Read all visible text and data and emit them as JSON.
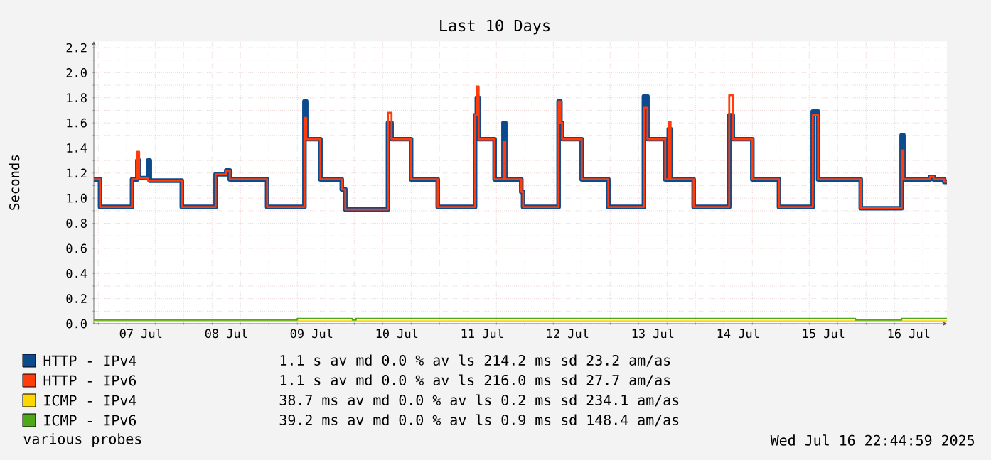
{
  "chart_data": {
    "type": "step",
    "title": "Last 10 Days",
    "ylabel": "Seconds",
    "x": [
      "2025-07-06T22:45",
      "2025-07-07T00:30",
      "2025-07-07T09:30",
      "2025-07-07T11:00",
      "2025-07-07T11:30",
      "2025-07-07T14:00",
      "2025-07-07T14:30",
      "2025-07-07T23:30",
      "2025-07-08T09:00",
      "2025-07-08T12:00",
      "2025-07-08T13:00",
      "2025-07-08T23:30",
      "2025-07-09T10:00",
      "2025-07-09T10:30",
      "2025-07-09T14:30",
      "2025-07-09T20:30",
      "2025-07-09T21:30",
      "2025-07-10T09:30",
      "2025-07-10T10:30",
      "2025-07-10T16:00",
      "2025-07-10T23:30",
      "2025-07-11T10:00",
      "2025-07-11T10:30",
      "2025-07-11T11:00",
      "2025-07-11T15:30",
      "2025-07-11T18:00",
      "2025-07-11T18:30",
      "2025-07-11T23:00",
      "2025-07-11T23:30",
      "2025-07-12T09:30",
      "2025-07-12T10:00",
      "2025-07-12T10:30",
      "2025-07-12T16:00",
      "2025-07-12T23:30",
      "2025-07-13T09:30",
      "2025-07-13T10:30",
      "2025-07-13T15:30",
      "2025-07-13T16:30",
      "2025-07-13T17:00",
      "2025-07-13T23:30",
      "2025-07-14T09:30",
      "2025-07-14T10:30",
      "2025-07-14T16:00",
      "2025-07-14T23:30",
      "2025-07-15T09:00",
      "2025-07-15T10:30",
      "2025-07-15T22:30",
      "2025-07-16T10:00",
      "2025-07-16T10:30",
      "2025-07-16T18:00",
      "2025-07-16T19:00",
      "2025-07-16T22:00",
      "2025-07-16T22:45"
    ],
    "series": [
      {
        "name": "HTTP - IPv4",
        "color": "#0b4a8c",
        "values": [
          1.15,
          0.93,
          1.15,
          1.3,
          1.16,
          1.3,
          1.14,
          0.93,
          1.19,
          1.22,
          1.15,
          0.93,
          1.77,
          1.47,
          1.15,
          1.07,
          0.91,
          1.6,
          1.47,
          1.15,
          0.93,
          1.66,
          1.8,
          1.47,
          1.15,
          1.6,
          1.15,
          1.05,
          0.93,
          1.77,
          1.6,
          1.47,
          1.15,
          0.93,
          1.81,
          1.47,
          1.15,
          1.55,
          1.15,
          0.93,
          1.66,
          1.47,
          1.15,
          0.93,
          1.69,
          1.15,
          0.92,
          1.5,
          1.15,
          1.17,
          1.15,
          1.13,
          1.13
        ]
      },
      {
        "name": "HTTP - IPv6",
        "color": "#ff3c0a",
        "values": [
          1.15,
          0.93,
          1.15,
          1.37,
          1.16,
          1.14,
          1.14,
          0.93,
          1.19,
          1.22,
          1.15,
          0.93,
          1.64,
          1.47,
          1.15,
          1.07,
          0.91,
          1.68,
          1.47,
          1.15,
          0.93,
          1.66,
          1.89,
          1.47,
          1.15,
          1.45,
          1.15,
          1.05,
          0.93,
          1.77,
          1.6,
          1.47,
          1.15,
          0.93,
          1.72,
          1.47,
          1.15,
          1.61,
          1.15,
          0.93,
          1.82,
          1.47,
          1.15,
          0.93,
          1.66,
          1.15,
          0.92,
          1.38,
          1.15,
          1.17,
          1.15,
          1.13,
          1.13
        ]
      },
      {
        "name": "ICMP - IPv4",
        "color": "#ffd700",
        "x": [
          "2025-07-06T22:45",
          "2025-07-16T22:45"
        ],
        "values": [
          0.02,
          0.02
        ]
      },
      {
        "name": "ICMP - IPv6",
        "color": "#4ea81a",
        "x": [
          "2025-07-06T22:45",
          "2025-07-09T08:00",
          "2025-07-09T23:30",
          "2025-07-10T00:30",
          "2025-07-15T21:00",
          "2025-07-16T10:00",
          "2025-07-16T22:45"
        ],
        "values": [
          0.03,
          0.04,
          0.03,
          0.04,
          0.03,
          0.04,
          0.04
        ]
      }
    ],
    "xlim": [
      "2025-07-06T22:45",
      "2025-07-16T22:45"
    ],
    "xticks": [
      {
        "value": "2025-07-07T00:00",
        "label": null
      },
      {
        "value": "2025-07-07T08:00",
        "label": null
      },
      {
        "value": "2025-07-07T16:00",
        "label": null
      },
      {
        "value": "2025-07-08T00:00",
        "label": null
      },
      {
        "value": "2025-07-08T08:00",
        "label": null
      },
      {
        "value": "2025-07-08T16:00",
        "label": null
      },
      {
        "value": "2025-07-09T00:00",
        "label": null
      },
      {
        "value": "2025-07-09T08:00",
        "label": null
      },
      {
        "value": "2025-07-09T16:00",
        "label": null
      },
      {
        "value": "2025-07-10T00:00",
        "label": null
      },
      {
        "value": "2025-07-10T08:00",
        "label": null
      },
      {
        "value": "2025-07-10T16:00",
        "label": null
      },
      {
        "value": "2025-07-11T00:00",
        "label": null
      },
      {
        "value": "2025-07-11T08:00",
        "label": null
      },
      {
        "value": "2025-07-11T16:00",
        "label": null
      },
      {
        "value": "2025-07-12T00:00",
        "label": null
      },
      {
        "value": "2025-07-12T08:00",
        "label": null
      },
      {
        "value": "2025-07-12T16:00",
        "label": null
      },
      {
        "value": "2025-07-13T00:00",
        "label": null
      },
      {
        "value": "2025-07-13T08:00",
        "label": null
      },
      {
        "value": "2025-07-13T16:00",
        "label": null
      },
      {
        "value": "2025-07-14T00:00",
        "label": null
      },
      {
        "value": "2025-07-14T08:00",
        "label": null
      },
      {
        "value": "2025-07-14T16:00",
        "label": null
      },
      {
        "value": "2025-07-15T00:00",
        "label": null
      },
      {
        "value": "2025-07-15T08:00",
        "label": null
      },
      {
        "value": "2025-07-15T16:00",
        "label": null
      },
      {
        "value": "2025-07-16T00:00",
        "label": null
      },
      {
        "value": "2025-07-16T08:00",
        "label": null
      },
      {
        "value": "2025-07-16T16:00",
        "label": null
      },
      {
        "value": "2025-07-07T12:00",
        "label": "07 Jul"
      },
      {
        "value": "2025-07-08T12:00",
        "label": "08 Jul"
      },
      {
        "value": "2025-07-09T12:00",
        "label": "09 Jul"
      },
      {
        "value": "2025-07-10T12:00",
        "label": "10 Jul"
      },
      {
        "value": "2025-07-11T12:00",
        "label": "11 Jul"
      },
      {
        "value": "2025-07-12T12:00",
        "label": "12 Jul"
      },
      {
        "value": "2025-07-13T12:00",
        "label": "13 Jul"
      },
      {
        "value": "2025-07-14T12:00",
        "label": "14 Jul"
      },
      {
        "value": "2025-07-15T12:00",
        "label": "15 Jul"
      },
      {
        "value": "2025-07-16T12:00",
        "label": "16 Jul"
      }
    ],
    "ylim": [
      0,
      2.25
    ],
    "yticks": [
      {
        "value": 0,
        "label": "0.0"
      },
      {
        "value": 0.1,
        "label": null
      },
      {
        "value": 0.2,
        "label": "0.2"
      },
      {
        "value": 0.3,
        "label": null
      },
      {
        "value": 0.4,
        "label": "0.4"
      },
      {
        "value": 0.5,
        "label": null
      },
      {
        "value": 0.6,
        "label": "0.6"
      },
      {
        "value": 0.7,
        "label": null
      },
      {
        "value": 0.8,
        "label": "0.8"
      },
      {
        "value": 0.9,
        "label": null
      },
      {
        "value": 1,
        "label": "1.0"
      },
      {
        "value": 1.1,
        "label": null
      },
      {
        "value": 1.2,
        "label": "1.2"
      },
      {
        "value": 1.3,
        "label": null
      },
      {
        "value": 1.4,
        "label": "1.4"
      },
      {
        "value": 1.5,
        "label": null
      },
      {
        "value": 1.6,
        "label": "1.6"
      },
      {
        "value": 1.7,
        "label": null
      },
      {
        "value": 1.8,
        "label": "1.8"
      },
      {
        "value": 1.9,
        "label": null
      },
      {
        "value": 2,
        "label": "2.0"
      },
      {
        "value": 2.1,
        "label": null
      },
      {
        "value": 2.2,
        "label": "2.2"
      }
    ],
    "grid": true,
    "legend": "bottom",
    "annotations": [
      "1.1 s av md 0.0 % av ls 214.2 ms sd 23.2 am/as",
      "1.1 s av md 0.0 % av ls 216.0 ms sd 27.7 am/as",
      "38.7 ms av md 0.0 % av ls 0.2 ms sd 234.1 am/as",
      "39.2 ms av md 0.0 % av ls 0.9 ms sd 148.4 am/as",
      "various probes",
      "Wed Jul 16 22:44:59 2025"
    ]
  }
}
